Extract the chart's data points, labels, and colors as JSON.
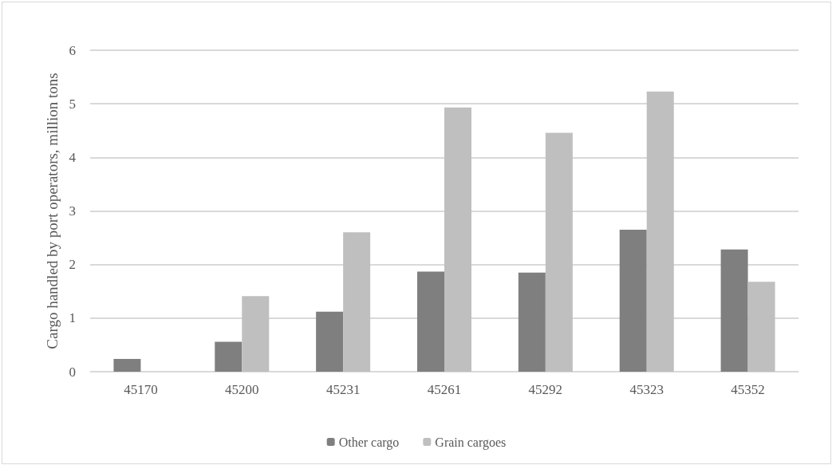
{
  "chart_data": {
    "type": "bar",
    "ylabel": "Cargo handled by port operators, million tons",
    "categories": [
      "45170",
      "45200",
      "45231",
      "45261",
      "45292",
      "45323",
      "45352"
    ],
    "series": [
      {
        "name": "Other cargo",
        "color": "#7f7f7f",
        "values": [
          0.24,
          0.56,
          1.12,
          1.87,
          1.85,
          2.65,
          2.28
        ]
      },
      {
        "name": "Grain cargoes",
        "color": "#bfbfbf",
        "values": [
          0,
          1.41,
          2.6,
          4.93,
          4.46,
          5.23,
          1.68
        ]
      }
    ],
    "ylim": [
      0,
      6
    ],
    "yticks": [
      0,
      1,
      2,
      3,
      4,
      5,
      6
    ],
    "grid": true,
    "legend": "bottom"
  }
}
